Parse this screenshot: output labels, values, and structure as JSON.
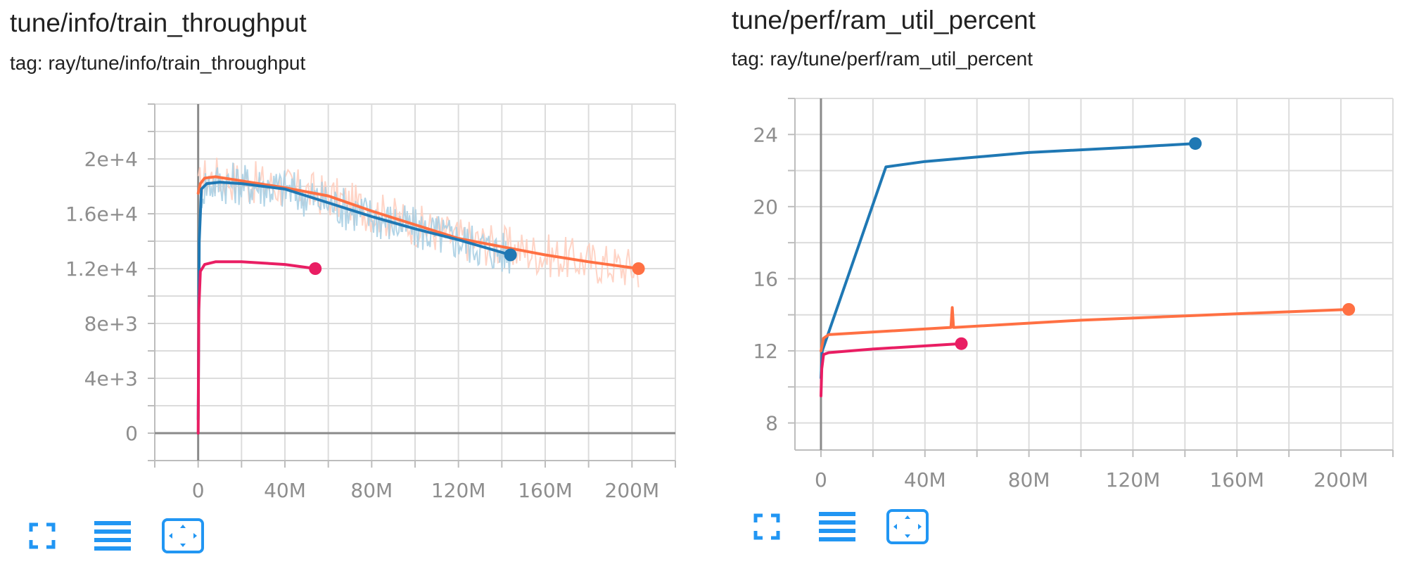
{
  "cards": [
    {
      "title": "tune/info/train_throughput",
      "tag": "tag: ray/tune/info/train_throughput"
    },
    {
      "title": "tune/perf/ram_util_percent",
      "tag": "tag: ray/tune/perf/ram_util_percent"
    }
  ],
  "toolbar": {
    "icons": [
      "fullscreen-icon",
      "toggle-log-scale-icon",
      "fit-domain-icon"
    ],
    "color": "#2196f3"
  },
  "colors": {
    "blue": "#1f78b4",
    "orange": "#ff7043",
    "pink": "#e91e63",
    "blue_raw": "#a6cee3",
    "orange_raw": "#ffccbc"
  },
  "chart_data": [
    {
      "type": "line",
      "title": "tune/info/train_throughput",
      "xlim": [
        -20000000,
        220000000
      ],
      "ylim": [
        -2000,
        24000
      ],
      "x_ticks": [
        0,
        40000000,
        80000000,
        120000000,
        160000000,
        200000000
      ],
      "x_tick_labels": [
        "0",
        "40M",
        "80M",
        "120M",
        "160M",
        "200M"
      ],
      "y_ticks": [
        0,
        4000,
        8000,
        12000,
        16000,
        20000
      ],
      "y_tick_labels": [
        "0",
        "4e+3",
        "8e+3",
        "1.2e+4",
        "1.6e+4",
        "2e+4"
      ],
      "grid": true,
      "series": [
        {
          "color": "#ff7043",
          "raw_color": "#ffccbc",
          "x": [
            0,
            1000000,
            3000000,
            8000000,
            20000000,
            40000000,
            60000000,
            80000000,
            100000000,
            120000000,
            140000000,
            160000000,
            180000000,
            203000000
          ],
          "y": [
            17500,
            18200,
            18600,
            18700,
            18400,
            17900,
            17300,
            16200,
            15200,
            14200,
            13600,
            13000,
            12500,
            12000
          ]
        },
        {
          "color": "#1f78b4",
          "raw_color": "#a6cee3",
          "x": [
            0,
            500000,
            1500000,
            4000000,
            10000000,
            20000000,
            40000000,
            60000000,
            80000000,
            100000000,
            120000000,
            144000000
          ],
          "y": [
            1000,
            14000,
            17800,
            18200,
            18300,
            18200,
            17800,
            16800,
            15800,
            14900,
            14100,
            13000
          ]
        },
        {
          "color": "#e91e63",
          "x": [
            0,
            300000,
            1000000,
            3000000,
            8000000,
            20000000,
            40000000,
            54000000
          ],
          "y": [
            0,
            9000,
            11800,
            12300,
            12500,
            12500,
            12300,
            12000
          ]
        }
      ]
    },
    {
      "type": "line",
      "title": "tune/perf/ram_util_percent",
      "xlim": [
        -10000000,
        220000000
      ],
      "ylim": [
        6.5,
        26
      ],
      "x_ticks": [
        0,
        40000000,
        80000000,
        120000000,
        160000000,
        200000000
      ],
      "x_tick_labels": [
        "0",
        "40M",
        "80M",
        "120M",
        "160M",
        "200M"
      ],
      "y_ticks": [
        8,
        12,
        16,
        20,
        24
      ],
      "y_tick_labels": [
        "8",
        "12",
        "16",
        "20",
        "24"
      ],
      "grid": true,
      "series": [
        {
          "color": "#1f78b4",
          "x": [
            0,
            500000,
            25000000,
            40000000,
            80000000,
            120000000,
            144000000
          ],
          "y": [
            10.5,
            12,
            22.2,
            22.5,
            23,
            23.3,
            23.5
          ]
        },
        {
          "color": "#ff7043",
          "x": [
            0,
            1000000,
            3000000,
            50000000,
            50500000,
            51000000,
            51500000,
            100000000,
            150000000,
            203000000
          ],
          "y": [
            12,
            12.7,
            12.9,
            13.3,
            14.4,
            13.3,
            13.3,
            13.7,
            14,
            14.3
          ]
        },
        {
          "color": "#e91e63",
          "x": [
            0,
            300000,
            1000000,
            3000000,
            20000000,
            54000000
          ],
          "y": [
            9.5,
            11,
            11.8,
            11.9,
            12.1,
            12.4
          ]
        }
      ]
    }
  ]
}
